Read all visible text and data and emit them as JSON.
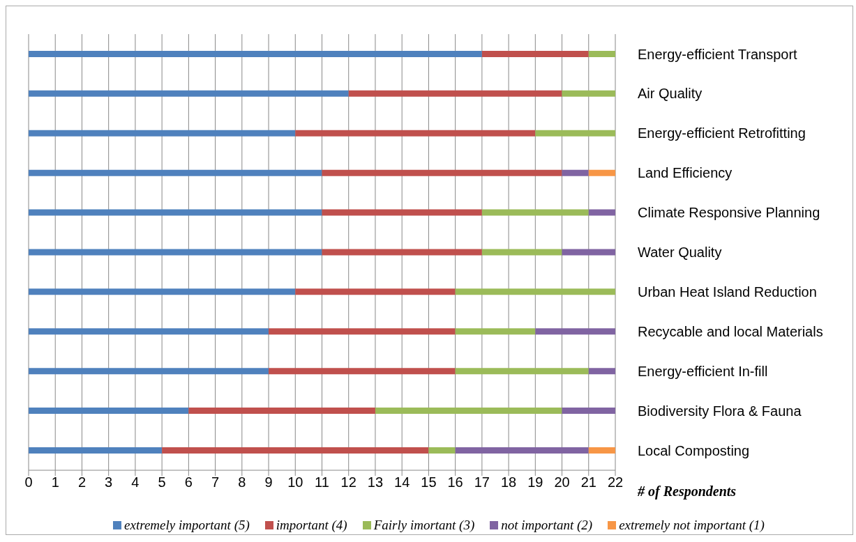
{
  "chart_data": {
    "type": "bar",
    "orientation": "horizontal",
    "stacked": true,
    "categories": [
      "Energy-efficient Transport",
      "Air Quality",
      "Energy-efficient Retrofitting",
      "Land Efficiency",
      "Climate Responsive Planning",
      "Water Quality",
      "Urban Heat Island Reduction",
      "Recycable and local Materials",
      "Energy-efficient In-fill",
      "Biodiversity Flora & Fauna",
      "Local Composting"
    ],
    "series": [
      {
        "name": "extremely important (5)",
        "color": "#4f81bd",
        "values": [
          17,
          12,
          10,
          11,
          11,
          11,
          10,
          9,
          9,
          6,
          5
        ]
      },
      {
        "name": "important (4)",
        "color": "#c0504d",
        "values": [
          4,
          8,
          9,
          9,
          6,
          6,
          6,
          7,
          7,
          7,
          10
        ]
      },
      {
        "name": "Fairly imortant (3)",
        "color": "#9bbb59",
        "values": [
          1,
          2,
          3,
          0,
          4,
          3,
          6,
          3,
          5,
          7,
          1
        ]
      },
      {
        "name": "not important (2)",
        "color": "#8064a2",
        "values": [
          0,
          0,
          0,
          1,
          1,
          2,
          0,
          3,
          1,
          2,
          5
        ]
      },
      {
        "name": "extremely not important (1)",
        "color": "#f79646",
        "values": [
          0,
          0,
          0,
          1,
          0,
          0,
          0,
          0,
          0,
          0,
          1
        ]
      }
    ],
    "xlabel": "# of Respondents",
    "xlim": [
      0,
      22
    ],
    "xticks": [
      0,
      1,
      2,
      3,
      4,
      5,
      6,
      7,
      8,
      9,
      10,
      11,
      12,
      13,
      14,
      15,
      16,
      17,
      18,
      19,
      20,
      21,
      22
    ],
    "grid": "x",
    "legend": "bottom"
  }
}
